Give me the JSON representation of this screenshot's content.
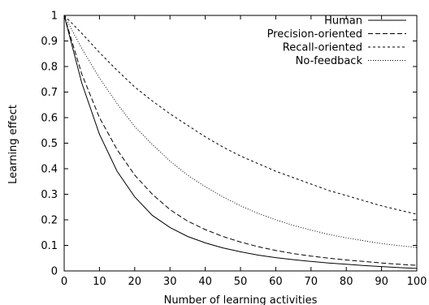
{
  "chart_data": {
    "type": "line",
    "title": "",
    "xlabel": "Number of learning activities",
    "ylabel": "Learning effect",
    "xlim": [
      0,
      100
    ],
    "ylim": [
      0,
      1
    ],
    "xticks": [
      0,
      10,
      20,
      30,
      40,
      50,
      60,
      70,
      80,
      90,
      100
    ],
    "yticks": [
      0,
      0.1,
      0.2,
      0.3,
      0.4,
      0.5,
      0.6,
      0.7,
      0.8,
      0.9,
      1
    ],
    "xtick_labels": [
      "0",
      "10",
      "20",
      "30",
      "40",
      "50",
      "60",
      "70",
      "80",
      "90",
      "100"
    ],
    "ytick_labels": [
      "0",
      "0.1",
      "0.2",
      "0.3",
      "0.4",
      "0.5",
      "0.6",
      "0.7",
      "0.8",
      "0.9",
      "1"
    ],
    "grid": false,
    "legend_position": "top-right",
    "x": [
      0,
      5,
      10,
      15,
      20,
      25,
      30,
      35,
      40,
      45,
      50,
      55,
      60,
      65,
      70,
      75,
      80,
      85,
      90,
      95,
      100
    ],
    "series": [
      {
        "name": "Human",
        "line_style": "solid",
        "color": "#000000",
        "values": [
          1.0,
          0.735,
          0.535,
          0.39,
          0.29,
          0.217,
          0.17,
          0.135,
          0.11,
          0.09,
          0.075,
          0.062,
          0.052,
          0.044,
          0.037,
          0.031,
          0.026,
          0.021,
          0.017,
          0.013,
          0.01
        ]
      },
      {
        "name": "Precision-oriented",
        "line_style": "dashed",
        "color": "#000000",
        "values": [
          1.0,
          0.77,
          0.6,
          0.475,
          0.375,
          0.3,
          0.24,
          0.195,
          0.162,
          0.135,
          0.113,
          0.095,
          0.08,
          0.068,
          0.058,
          0.05,
          0.043,
          0.037,
          0.031,
          0.026,
          0.022
        ]
      },
      {
        "name": "Recall-oriented",
        "line_style": "short-dashed",
        "color": "#000000",
        "values": [
          1.0,
          0.93,
          0.855,
          0.785,
          0.72,
          0.665,
          0.615,
          0.57,
          0.525,
          0.485,
          0.45,
          0.42,
          0.39,
          0.365,
          0.34,
          0.315,
          0.295,
          0.275,
          0.255,
          0.238,
          0.222
        ]
      },
      {
        "name": "No-feedback",
        "line_style": "dotted",
        "color": "#000000",
        "values": [
          1.0,
          0.87,
          0.755,
          0.655,
          0.565,
          0.495,
          0.43,
          0.375,
          0.33,
          0.29,
          0.255,
          0.225,
          0.2,
          0.178,
          0.16,
          0.143,
          0.13,
          0.118,
          0.107,
          0.099,
          0.092
        ]
      }
    ]
  }
}
